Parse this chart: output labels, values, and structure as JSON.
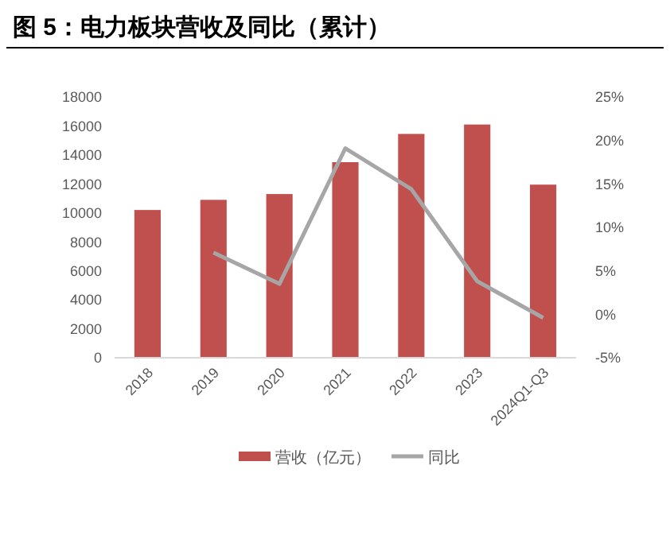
{
  "chart_data": {
    "type": "bar",
    "title": "图 5：电力板块营收及同比（累计）",
    "categories": [
      "2018",
      "2019",
      "2020",
      "2021",
      "2022",
      "2023",
      "2024Q1-Q3"
    ],
    "series": [
      {
        "name": "营收（亿元）",
        "color": "#c0504d",
        "values": [
          10200,
          10900,
          11300,
          13500,
          15450,
          16100,
          11950
        ]
      },
      {
        "name": "同比",
        "type": "line",
        "axis": "y2",
        "color": "#a6a6a6",
        "values": [
          null,
          7.1,
          3.5,
          19.1,
          14.4,
          3.8,
          -0.4
        ]
      }
    ],
    "ylim": [
      0,
      18000
    ],
    "yticks": [
      0,
      2000,
      4000,
      6000,
      8000,
      10000,
      12000,
      14000,
      16000,
      18000
    ],
    "y2lim": [
      -5,
      25
    ],
    "y2ticks": [
      {
        "value": -5,
        "label": "-5%"
      },
      {
        "value": 0,
        "label": "0%"
      },
      {
        "value": 5,
        "label": "5%"
      },
      {
        "value": 10,
        "label": "10%"
      },
      {
        "value": 15,
        "label": "15%"
      },
      {
        "value": 20,
        "label": "20%"
      },
      {
        "value": 25,
        "label": "25%"
      }
    ],
    "grid": false,
    "legend": "bottom"
  }
}
